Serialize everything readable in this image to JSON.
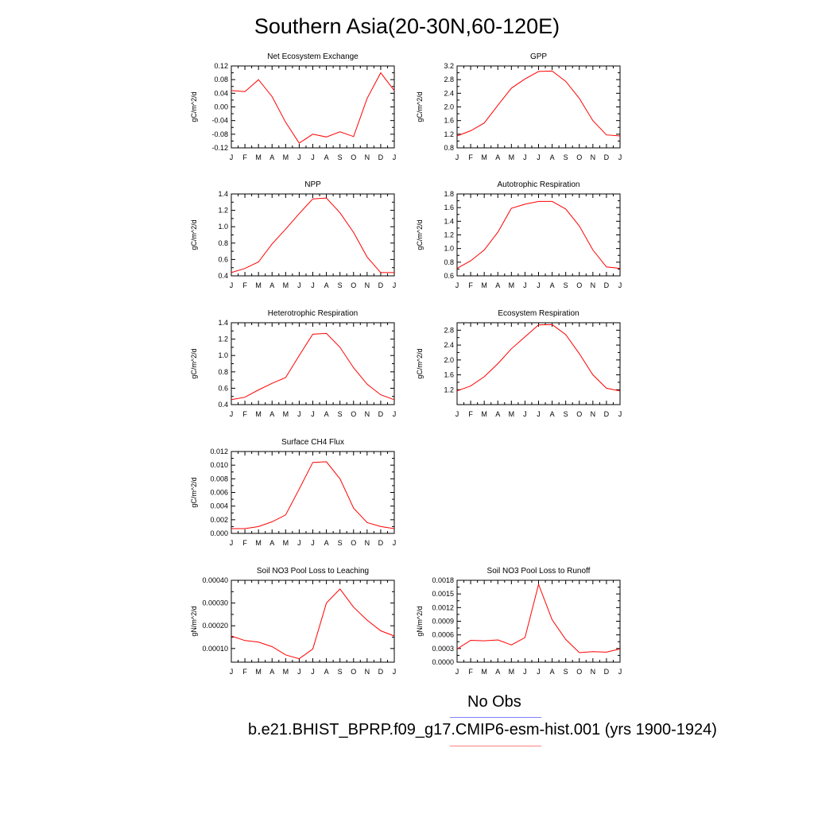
{
  "title": "Southern Asia(20-30N,60-120E)",
  "months": [
    "J",
    "F",
    "M",
    "A",
    "M",
    "J",
    "J",
    "A",
    "S",
    "O",
    "N",
    "D",
    "J"
  ],
  "legend": {
    "obs_label": "No Obs",
    "model_label": "b.e21.BHIST_BPRP.f09_g17.CMIP6-esm-hist.001 (yrs 1900-1924)",
    "obs_color": "#8080ff",
    "model_color": "#ff8080"
  },
  "line_color": "#ff0000",
  "chart_data": [
    {
      "type": "line",
      "title": "Net Ecosystem Exchange",
      "ylabel": "gC/m^2/d",
      "xlabel": "",
      "ylim": [
        -0.12,
        0.12
      ],
      "yticks": [
        "-0.12",
        "-0.08",
        "-0.04",
        "0.00",
        "0.04",
        "0.08",
        "0.12"
      ],
      "values": [
        0.048,
        0.045,
        0.08,
        0.03,
        -0.045,
        -0.106,
        -0.08,
        -0.088,
        -0.073,
        -0.087,
        0.025,
        0.1,
        0.048
      ]
    },
    {
      "type": "line",
      "title": "GPP",
      "ylabel": "gC/m^2/d",
      "xlabel": "",
      "ylim": [
        0.8,
        3.2
      ],
      "yticks": [
        "0.8",
        "1.2",
        "1.6",
        "2.0",
        "2.4",
        "2.8",
        "3.2"
      ],
      "values": [
        1.15,
        1.3,
        1.53,
        2.05,
        2.55,
        2.82,
        3.04,
        3.05,
        2.75,
        2.25,
        1.6,
        1.18,
        1.15
      ]
    },
    {
      "type": "line",
      "title": "NPP",
      "ylabel": "gC/m^2/d",
      "xlabel": "",
      "ylim": [
        0.4,
        1.4
      ],
      "yticks": [
        "0.4",
        "0.6",
        "0.8",
        "1.0",
        "1.2",
        "1.4"
      ],
      "values": [
        0.44,
        0.49,
        0.57,
        0.79,
        0.97,
        1.16,
        1.34,
        1.35,
        1.17,
        0.93,
        0.63,
        0.44,
        0.44
      ]
    },
    {
      "type": "line",
      "title": "Autotrophic Respiration",
      "ylabel": "gC/m^2/d",
      "xlabel": "",
      "ylim": [
        0.6,
        1.8
      ],
      "yticks": [
        "0.6",
        "0.8",
        "1.0",
        "1.2",
        "1.4",
        "1.6",
        "1.8"
      ],
      "values": [
        0.71,
        0.82,
        0.98,
        1.24,
        1.59,
        1.65,
        1.69,
        1.69,
        1.58,
        1.33,
        0.98,
        0.73,
        0.71
      ]
    },
    {
      "type": "line",
      "title": "Heterotrophic Respiration",
      "ylabel": "gC/m^2/d",
      "xlabel": "",
      "ylim": [
        0.4,
        1.4
      ],
      "yticks": [
        "0.4",
        "0.6",
        "0.8",
        "1.0",
        "1.2",
        "1.4"
      ],
      "values": [
        0.46,
        0.49,
        0.58,
        0.66,
        0.73,
        1.0,
        1.26,
        1.27,
        1.1,
        0.85,
        0.65,
        0.52,
        0.46
      ]
    },
    {
      "type": "line",
      "title": "Ecosystem Respiration",
      "ylabel": "gC/m^2/d",
      "xlabel": "",
      "ylim": [
        0.8,
        3.0
      ],
      "yticks": [
        "1.2",
        "1.6",
        "2.0",
        "2.4",
        "2.8"
      ],
      "values": [
        1.17,
        1.3,
        1.55,
        1.9,
        2.3,
        2.62,
        2.94,
        2.95,
        2.68,
        2.17,
        1.6,
        1.24,
        1.17
      ]
    },
    {
      "type": "line",
      "title": "Surface CH4 Flux",
      "ylabel": "gC/m^2/d",
      "xlabel": "",
      "ylim": [
        0.0,
        0.012
      ],
      "yticks": [
        "0.000",
        "0.002",
        "0.004",
        "0.006",
        "0.008",
        "0.010",
        "0.012"
      ],
      "values": [
        0.0007,
        0.0007,
        0.001,
        0.0017,
        0.0027,
        0.0065,
        0.0104,
        0.0105,
        0.008,
        0.0037,
        0.0016,
        0.001,
        0.0007
      ]
    },
    {
      "type": "line",
      "title": "Soil NO3 Pool Loss to Leaching",
      "ylabel": "gN/m^2/d",
      "xlabel": "",
      "ylim": [
        4e-05,
        0.0004
      ],
      "yticks": [
        "0.00010",
        "0.00020",
        "0.00030",
        "0.00040"
      ],
      "values": [
        0.000155,
        0.000135,
        0.000128,
        0.000108,
        7.2e-05,
        5.5e-05,
        9.8e-05,
        0.0003,
        0.000362,
        0.000282,
        0.000225,
        0.000178,
        0.000155
      ]
    },
    {
      "type": "line",
      "title": "Soil NO3 Pool Loss to Runoff",
      "ylabel": "gN/m^2/d",
      "xlabel": "",
      "ylim": [
        0.0,
        0.0018
      ],
      "yticks": [
        "0.0000",
        "0.0003",
        "0.0006",
        "0.0009",
        "0.0012",
        "0.0015",
        "0.0018"
      ],
      "values": [
        0.00029,
        0.00048,
        0.00047,
        0.00049,
        0.00038,
        0.00054,
        0.00171,
        0.00093,
        0.0005,
        0.00021,
        0.00023,
        0.00022,
        0.00029
      ]
    }
  ]
}
